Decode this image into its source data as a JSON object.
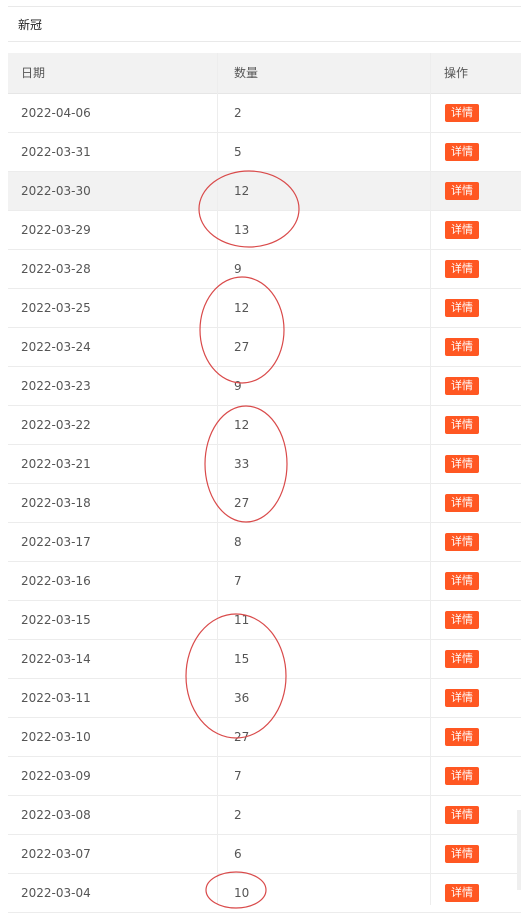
{
  "page": {
    "title": "新冠"
  },
  "table": {
    "columns": [
      "日期",
      "数量",
      "操作"
    ],
    "button_label": "详情",
    "rows": [
      {
        "date": "2022-04-06",
        "count": "2"
      },
      {
        "date": "2022-03-31",
        "count": "5"
      },
      {
        "date": "2022-03-30",
        "count": "12"
      },
      {
        "date": "2022-03-29",
        "count": "13"
      },
      {
        "date": "2022-03-28",
        "count": "9"
      },
      {
        "date": "2022-03-25",
        "count": "12"
      },
      {
        "date": "2022-03-24",
        "count": "27"
      },
      {
        "date": "2022-03-23",
        "count": "9"
      },
      {
        "date": "2022-03-22",
        "count": "12"
      },
      {
        "date": "2022-03-21",
        "count": "33"
      },
      {
        "date": "2022-03-18",
        "count": "27"
      },
      {
        "date": "2022-03-17",
        "count": "8"
      },
      {
        "date": "2022-03-16",
        "count": "7"
      },
      {
        "date": "2022-03-15",
        "count": "11"
      },
      {
        "date": "2022-03-14",
        "count": "15"
      },
      {
        "date": "2022-03-11",
        "count": "36"
      },
      {
        "date": "2022-03-10",
        "count": "27"
      },
      {
        "date": "2022-03-09",
        "count": "7"
      },
      {
        "date": "2022-03-08",
        "count": "2"
      },
      {
        "date": "2022-03-07",
        "count": "6"
      },
      {
        "date": "2022-03-04",
        "count": "10"
      }
    ]
  },
  "colors": {
    "button": "#ff5722",
    "highlight_row": "#f2f2f2",
    "annotation": "#d94a4a"
  }
}
